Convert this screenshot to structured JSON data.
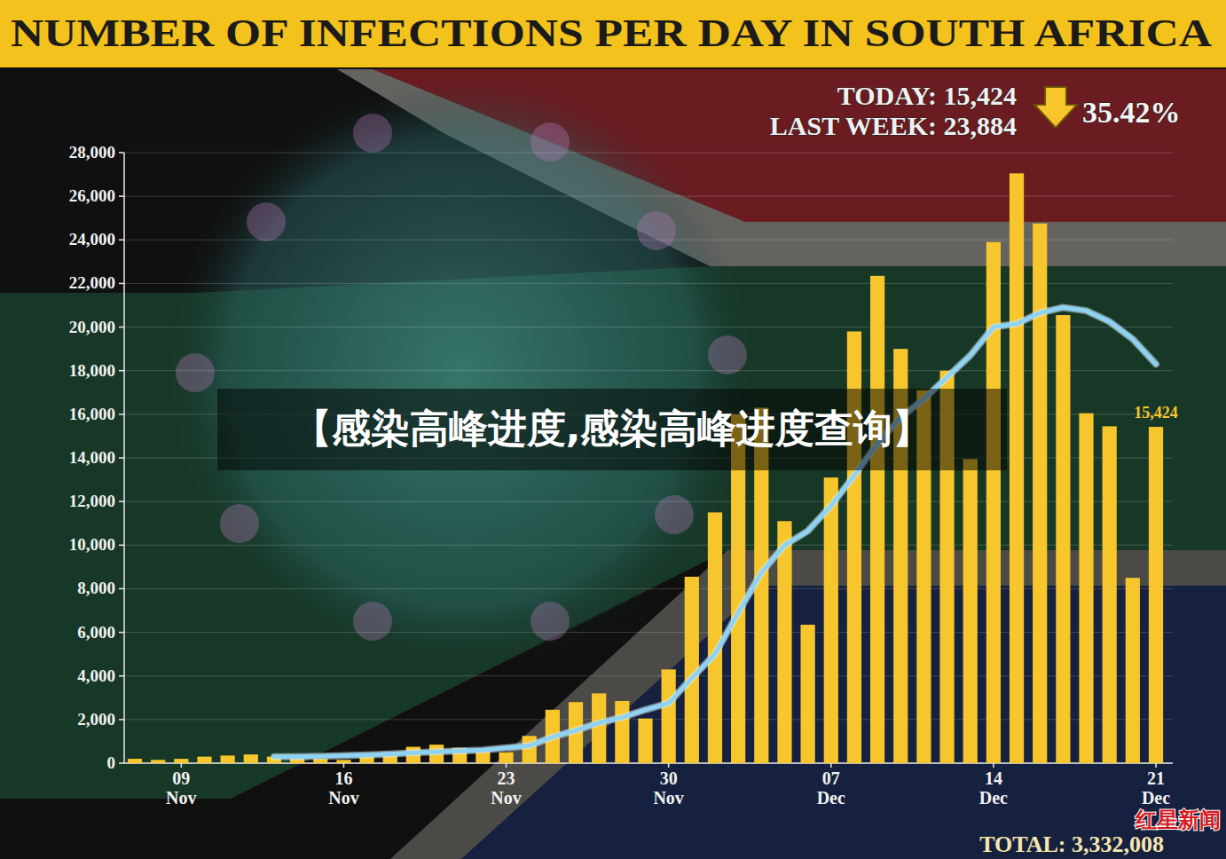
{
  "chart_data": {
    "type": "bar",
    "title": "NUMBER OF INFECTIONS PER DAY IN SOUTH AFRICA",
    "categories": [
      null,
      null,
      "09 Nov",
      null,
      null,
      null,
      null,
      null,
      null,
      "16 Nov",
      null,
      null,
      null,
      null,
      null,
      null,
      "23 Nov",
      null,
      null,
      null,
      null,
      null,
      null,
      "30 Nov",
      null,
      null,
      null,
      null,
      null,
      null,
      "07 Dec",
      null,
      null,
      null,
      null,
      null,
      null,
      "14 Dec",
      null,
      null,
      null,
      null,
      null,
      null,
      "21 Dec"
    ],
    "series": [
      {
        "type": "bar",
        "color": "#f6c62c",
        "values": [
          200,
          150,
          200,
          300,
          350,
          400,
          300,
          250,
          200,
          150,
          350,
          500,
          750,
          850,
          700,
          600,
          500,
          1250,
          2450,
          2800,
          3200,
          2850,
          2050,
          4300,
          8550,
          11500,
          16000,
          16300,
          11100,
          6350,
          13100,
          19800,
          22350,
          19000,
          17100,
          18000,
          13950,
          23900,
          27050,
          24750,
          20550,
          16050,
          15450,
          8500,
          15424
        ]
      },
      {
        "type": "line",
        "color": "#8fd3f4",
        "values": [
          null,
          null,
          null,
          null,
          null,
          null,
          300,
          300,
          320,
          350,
          380,
          420,
          480,
          520,
          560,
          600,
          700,
          800,
          1200,
          1500,
          1850,
          2100,
          2450,
          2750,
          3900,
          5000,
          6900,
          8750,
          10000,
          10650,
          11800,
          13200,
          14650,
          15850,
          16700,
          17700,
          18700,
          20000,
          20150,
          20650,
          20900,
          20750,
          20250,
          19450,
          18300
        ]
      }
    ],
    "ylim": [
      0,
      28000
    ],
    "yticks": [
      0,
      {
        "value": 2000,
        "label": "2,000"
      },
      {
        "value": 4000,
        "label": "4,000"
      },
      {
        "value": 6000,
        "label": "6,000"
      },
      {
        "value": 8000,
        "label": "8,000"
      },
      {
        "value": 10000,
        "label": "10,000"
      },
      {
        "value": 12000,
        "label": "12,000"
      },
      {
        "value": 14000,
        "label": "14,000"
      },
      {
        "value": 16000,
        "label": "16,000"
      },
      {
        "value": 18000,
        "label": "18,000"
      },
      {
        "value": 20000,
        "label": "20,000"
      },
      {
        "value": 22000,
        "label": "22,000"
      },
      {
        "value": 24000,
        "label": "24,000"
      },
      {
        "value": 26000,
        "label": "26,000"
      },
      {
        "value": 28000,
        "label": "28,000"
      }
    ],
    "grid": true,
    "annotations": [
      "TODAY: 15,424",
      "LAST WEEK: 23,884",
      "35.42%",
      "15,424",
      "TOTAL: 3,332,008",
      "【感染高峰进度,感染高峰进度查询】",
      "红星新闻"
    ]
  }
}
